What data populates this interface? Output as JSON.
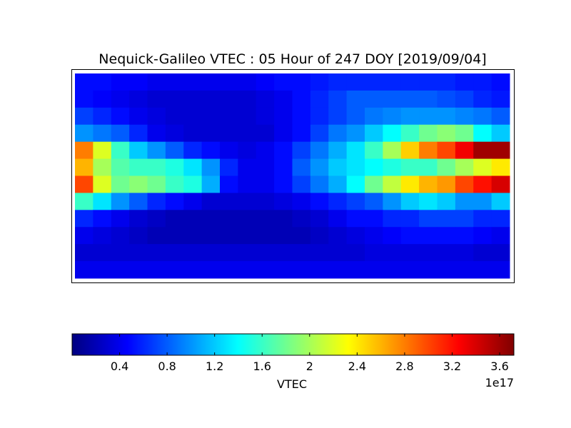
{
  "chart_data": {
    "type": "heatmap",
    "title": "Nequick-Galileo VTEC : 05 Hour of 247 DOY [2019/09/04]",
    "values": [
      [
        0.5,
        0.5,
        0.45,
        0.45,
        0.4,
        0.4,
        0.4,
        0.4,
        0.4,
        0.4,
        0.45,
        0.5,
        0.5,
        0.55,
        0.6,
        0.6,
        0.6,
        0.6,
        0.6,
        0.6,
        0.6,
        0.55,
        0.55,
        0.5
      ],
      [
        0.5,
        0.45,
        0.4,
        0.35,
        0.3,
        0.3,
        0.3,
        0.3,
        0.3,
        0.3,
        0.35,
        0.4,
        0.5,
        0.6,
        0.7,
        0.8,
        0.8,
        0.8,
        0.8,
        0.8,
        0.75,
        0.7,
        0.6,
        0.55
      ],
      [
        0.7,
        0.6,
        0.5,
        0.4,
        0.35,
        0.3,
        0.3,
        0.3,
        0.3,
        0.3,
        0.35,
        0.4,
        0.5,
        0.6,
        0.7,
        0.8,
        0.9,
        0.95,
        1.0,
        1.0,
        1.0,
        0.95,
        0.9,
        0.8
      ],
      [
        1.0,
        0.9,
        0.8,
        0.6,
        0.4,
        0.35,
        0.3,
        0.3,
        0.3,
        0.3,
        0.3,
        0.4,
        0.5,
        0.7,
        0.9,
        1.0,
        1.2,
        1.4,
        1.6,
        1.8,
        1.9,
        1.8,
        1.4,
        1.2
      ],
      [
        2.8,
        2.2,
        1.6,
        1.2,
        1.0,
        0.8,
        0.6,
        0.5,
        0.4,
        0.35,
        0.4,
        0.5,
        0.7,
        0.9,
        1.1,
        1.3,
        1.6,
        2.0,
        2.5,
        2.8,
        3.0,
        3.3,
        3.6,
        3.6
      ],
      [
        2.6,
        2.0,
        1.7,
        1.6,
        1.6,
        1.5,
        1.3,
        1.0,
        0.6,
        0.4,
        0.4,
        0.5,
        0.8,
        1.0,
        1.2,
        1.3,
        1.4,
        1.5,
        1.6,
        1.6,
        1.8,
        2.0,
        2.2,
        2.4
      ],
      [
        3.0,
        2.2,
        1.8,
        1.9,
        1.8,
        1.6,
        1.5,
        1.1,
        0.5,
        0.4,
        0.4,
        0.5,
        0.7,
        0.9,
        1.1,
        1.4,
        1.8,
        2.1,
        2.4,
        2.6,
        2.7,
        3.0,
        3.2,
        3.4
      ],
      [
        1.6,
        1.3,
        1.0,
        0.8,
        0.6,
        0.5,
        0.4,
        0.3,
        0.3,
        0.3,
        0.3,
        0.35,
        0.4,
        0.5,
        0.6,
        0.7,
        0.8,
        1.0,
        1.2,
        1.3,
        1.2,
        1.0,
        1.0,
        1.2
      ],
      [
        0.6,
        0.5,
        0.4,
        0.3,
        0.25,
        0.2,
        0.2,
        0.2,
        0.2,
        0.2,
        0.2,
        0.2,
        0.25,
        0.3,
        0.4,
        0.5,
        0.5,
        0.6,
        0.6,
        0.7,
        0.7,
        0.7,
        0.6,
        0.6
      ],
      [
        0.4,
        0.35,
        0.3,
        0.25,
        0.2,
        0.2,
        0.2,
        0.2,
        0.2,
        0.2,
        0.2,
        0.2,
        0.2,
        0.25,
        0.3,
        0.35,
        0.4,
        0.45,
        0.5,
        0.5,
        0.5,
        0.5,
        0.45,
        0.4
      ],
      [
        0.3,
        0.3,
        0.3,
        0.3,
        0.3,
        0.3,
        0.3,
        0.3,
        0.3,
        0.3,
        0.3,
        0.3,
        0.3,
        0.3,
        0.3,
        0.3,
        0.35,
        0.35,
        0.35,
        0.35,
        0.35,
        0.35,
        0.3,
        0.3
      ],
      [
        0.4,
        0.4,
        0.4,
        0.4,
        0.4,
        0.4,
        0.4,
        0.4,
        0.4,
        0.4,
        0.4,
        0.4,
        0.4,
        0.4,
        0.4,
        0.4,
        0.4,
        0.4,
        0.4,
        0.4,
        0.4,
        0.4,
        0.4,
        0.4
      ]
    ],
    "colormap": "jet",
    "colorbar": {
      "label": "VTEC",
      "offset_label": "1e17",
      "xlim": [
        0,
        3.72
      ],
      "xticks": [
        0.4,
        0.8,
        1.2,
        1.6,
        2.0,
        2.4,
        2.8,
        3.2,
        3.6
      ]
    }
  }
}
